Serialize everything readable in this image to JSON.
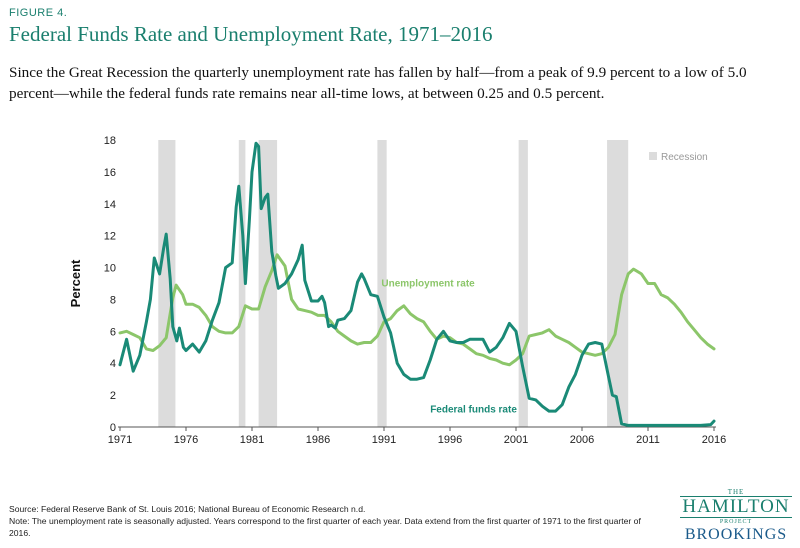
{
  "figure_label": "FIGURE 4.",
  "title": "Federal Funds Rate and Unemployment Rate, 1971–2016",
  "subtitle": "Since the Great Recession the quarterly unemployment rate has fallen by half—from a peak of 9.9 percent to a low of 5.0 percent—while the federal funds rate remains near all-time lows, at between 0.25 and 0.5 percent.",
  "source": "Source: Federal Reserve Bank of St. Louis 2016; National Bureau of Economic Research n.d.",
  "note": "Note: The unemployment rate is seasonally adjusted. Years correspond to the first quarter of each year. Data extend from the first quarter of 1971 to the first quarter of 2016.",
  "logo": {
    "the": "THE",
    "hamilton": "HAMILTON",
    "project": "PROJECT",
    "brookings": "BROOKINGS"
  },
  "colors": {
    "unemployment": "#8cc66a",
    "fed_funds": "#1a8a77",
    "recession": "#dcdcdc",
    "title": "#1a7f6e"
  },
  "chart_data": {
    "type": "line",
    "xlabel": "",
    "ylabel": "Percent",
    "xlim": [
      1971,
      2016
    ],
    "ylim": [
      0,
      18
    ],
    "x_ticks": [
      1971,
      1976,
      1981,
      1986,
      1991,
      1996,
      2001,
      2006,
      2011,
      2016
    ],
    "y_ticks": [
      0,
      2,
      4,
      6,
      8,
      10,
      12,
      14,
      16,
      18
    ],
    "grid": false,
    "legend": {
      "label": "Recession",
      "placement": "top-right"
    },
    "recessions": [
      [
        1973.9,
        1975.2
      ],
      [
        1980.0,
        1980.5
      ],
      [
        1981.5,
        1982.9
      ],
      [
        1990.5,
        1991.2
      ],
      [
        2001.2,
        2001.9
      ],
      [
        2007.9,
        2009.5
      ]
    ],
    "series": [
      {
        "name": "Unemployment rate",
        "label_at": [
          1990.8,
          8.8
        ],
        "points": [
          [
            1971.0,
            5.9
          ],
          [
            1971.5,
            6.0
          ],
          [
            1972.0,
            5.8
          ],
          [
            1972.5,
            5.6
          ],
          [
            1973.0,
            4.9
          ],
          [
            1973.5,
            4.8
          ],
          [
            1974.0,
            5.1
          ],
          [
            1974.5,
            5.6
          ],
          [
            1975.0,
            8.1
          ],
          [
            1975.25,
            8.9
          ],
          [
            1975.75,
            8.3
          ],
          [
            1976.0,
            7.7
          ],
          [
            1976.5,
            7.7
          ],
          [
            1977.0,
            7.5
          ],
          [
            1977.5,
            7.0
          ],
          [
            1978.0,
            6.3
          ],
          [
            1978.5,
            6.0
          ],
          [
            1979.0,
            5.9
          ],
          [
            1979.5,
            5.9
          ],
          [
            1980.0,
            6.3
          ],
          [
            1980.5,
            7.6
          ],
          [
            1981.0,
            7.4
          ],
          [
            1981.5,
            7.4
          ],
          [
            1982.0,
            8.8
          ],
          [
            1982.5,
            9.8
          ],
          [
            1982.9,
            10.8
          ],
          [
            1983.5,
            10.1
          ],
          [
            1984.0,
            8.0
          ],
          [
            1984.5,
            7.4
          ],
          [
            1985.0,
            7.3
          ],
          [
            1985.5,
            7.2
          ],
          [
            1986.0,
            7.0
          ],
          [
            1986.5,
            7.0
          ],
          [
            1987.0,
            6.6
          ],
          [
            1987.5,
            6.0
          ],
          [
            1988.0,
            5.7
          ],
          [
            1988.5,
            5.4
          ],
          [
            1989.0,
            5.2
          ],
          [
            1989.5,
            5.3
          ],
          [
            1990.0,
            5.3
          ],
          [
            1990.5,
            5.7
          ],
          [
            1991.0,
            6.6
          ],
          [
            1991.5,
            6.8
          ],
          [
            1992.0,
            7.3
          ],
          [
            1992.5,
            7.6
          ],
          [
            1993.0,
            7.1
          ],
          [
            1993.5,
            6.8
          ],
          [
            1994.0,
            6.6
          ],
          [
            1994.5,
            6.0
          ],
          [
            1995.0,
            5.5
          ],
          [
            1995.5,
            5.7
          ],
          [
            1996.0,
            5.6
          ],
          [
            1996.5,
            5.3
          ],
          [
            1997.0,
            5.2
          ],
          [
            1997.5,
            4.9
          ],
          [
            1998.0,
            4.6
          ],
          [
            1998.5,
            4.5
          ],
          [
            1999.0,
            4.3
          ],
          [
            1999.5,
            4.2
          ],
          [
            2000.0,
            4.0
          ],
          [
            2000.5,
            3.9
          ],
          [
            2001.0,
            4.2
          ],
          [
            2001.5,
            4.6
          ],
          [
            2002.0,
            5.7
          ],
          [
            2002.5,
            5.8
          ],
          [
            2003.0,
            5.9
          ],
          [
            2003.5,
            6.1
          ],
          [
            2004.0,
            5.7
          ],
          [
            2004.5,
            5.5
          ],
          [
            2005.0,
            5.3
          ],
          [
            2005.5,
            5.0
          ],
          [
            2006.0,
            4.7
          ],
          [
            2006.5,
            4.6
          ],
          [
            2007.0,
            4.5
          ],
          [
            2007.5,
            4.6
          ],
          [
            2008.0,
            5.0
          ],
          [
            2008.5,
            5.8
          ],
          [
            2009.0,
            8.3
          ],
          [
            2009.5,
            9.6
          ],
          [
            2009.9,
            9.9
          ],
          [
            2010.5,
            9.6
          ],
          [
            2011.0,
            9.0
          ],
          [
            2011.5,
            9.0
          ],
          [
            2012.0,
            8.3
          ],
          [
            2012.5,
            8.1
          ],
          [
            2013.0,
            7.7
          ],
          [
            2013.5,
            7.2
          ],
          [
            2014.0,
            6.6
          ],
          [
            2014.5,
            6.1
          ],
          [
            2015.0,
            5.6
          ],
          [
            2015.5,
            5.2
          ],
          [
            2016.0,
            4.9
          ]
        ]
      },
      {
        "name": "Federal funds rate",
        "label_at": [
          1994.5,
          0.9
        ],
        "points": [
          [
            1971.0,
            3.9
          ],
          [
            1971.5,
            5.5
          ],
          [
            1972.0,
            3.5
          ],
          [
            1972.5,
            4.5
          ],
          [
            1973.0,
            6.6
          ],
          [
            1973.3,
            8.0
          ],
          [
            1973.6,
            10.6
          ],
          [
            1974.0,
            9.6
          ],
          [
            1974.3,
            11.2
          ],
          [
            1974.5,
            12.1
          ],
          [
            1974.8,
            9.3
          ],
          [
            1975.0,
            6.3
          ],
          [
            1975.3,
            5.4
          ],
          [
            1975.5,
            6.2
          ],
          [
            1975.8,
            5.0
          ],
          [
            1976.0,
            4.8
          ],
          [
            1976.5,
            5.2
          ],
          [
            1977.0,
            4.7
          ],
          [
            1977.5,
            5.4
          ],
          [
            1978.0,
            6.7
          ],
          [
            1978.5,
            7.8
          ],
          [
            1979.0,
            10.0
          ],
          [
            1979.5,
            10.3
          ],
          [
            1979.8,
            13.8
          ],
          [
            1980.0,
            15.1
          ],
          [
            1980.3,
            12.0
          ],
          [
            1980.5,
            9.0
          ],
          [
            1980.8,
            13.0
          ],
          [
            1981.0,
            16.0
          ],
          [
            1981.3,
            17.8
          ],
          [
            1981.5,
            17.6
          ],
          [
            1981.7,
            13.7
          ],
          [
            1982.0,
            14.4
          ],
          [
            1982.2,
            14.6
          ],
          [
            1982.5,
            11.0
          ],
          [
            1982.8,
            9.5
          ],
          [
            1983.0,
            8.7
          ],
          [
            1983.5,
            9.0
          ],
          [
            1984.0,
            9.6
          ],
          [
            1984.5,
            10.5
          ],
          [
            1984.8,
            11.4
          ],
          [
            1985.0,
            9.2
          ],
          [
            1985.5,
            7.9
          ],
          [
            1986.0,
            7.9
          ],
          [
            1986.3,
            8.2
          ],
          [
            1986.5,
            7.8
          ],
          [
            1986.8,
            6.3
          ],
          [
            1987.0,
            6.4
          ],
          [
            1987.3,
            6.2
          ],
          [
            1987.5,
            6.7
          ],
          [
            1988.0,
            6.8
          ],
          [
            1988.5,
            7.3
          ],
          [
            1989.0,
            9.1
          ],
          [
            1989.3,
            9.6
          ],
          [
            1989.5,
            9.3
          ],
          [
            1990.0,
            8.3
          ],
          [
            1990.5,
            8.2
          ],
          [
            1991.0,
            6.9
          ],
          [
            1991.5,
            5.9
          ],
          [
            1992.0,
            4.0
          ],
          [
            1992.5,
            3.3
          ],
          [
            1993.0,
            3.0
          ],
          [
            1993.5,
            3.0
          ],
          [
            1994.0,
            3.1
          ],
          [
            1994.5,
            4.2
          ],
          [
            1995.0,
            5.5
          ],
          [
            1995.5,
            6.0
          ],
          [
            1996.0,
            5.4
          ],
          [
            1996.5,
            5.3
          ],
          [
            1997.0,
            5.3
          ],
          [
            1997.5,
            5.5
          ],
          [
            1998.0,
            5.5
          ],
          [
            1998.5,
            5.5
          ],
          [
            1999.0,
            4.7
          ],
          [
            1999.5,
            5.0
          ],
          [
            2000.0,
            5.6
          ],
          [
            2000.5,
            6.5
          ],
          [
            2001.0,
            6.0
          ],
          [
            2001.5,
            3.8
          ],
          [
            2002.0,
            1.8
          ],
          [
            2002.5,
            1.7
          ],
          [
            2003.0,
            1.3
          ],
          [
            2003.5,
            1.0
          ],
          [
            2004.0,
            1.0
          ],
          [
            2004.5,
            1.4
          ],
          [
            2005.0,
            2.5
          ],
          [
            2005.5,
            3.3
          ],
          [
            2006.0,
            4.5
          ],
          [
            2006.5,
            5.2
          ],
          [
            2007.0,
            5.3
          ],
          [
            2007.5,
            5.2
          ],
          [
            2008.0,
            3.2
          ],
          [
            2008.3,
            2.0
          ],
          [
            2008.6,
            1.9
          ],
          [
            2009.0,
            0.2
          ],
          [
            2009.5,
            0.1
          ],
          [
            2010.0,
            0.1
          ],
          [
            2011.0,
            0.1
          ],
          [
            2012.0,
            0.1
          ],
          [
            2013.0,
            0.1
          ],
          [
            2014.0,
            0.1
          ],
          [
            2015.0,
            0.1
          ],
          [
            2015.75,
            0.15
          ],
          [
            2016.0,
            0.37
          ]
        ]
      }
    ]
  }
}
